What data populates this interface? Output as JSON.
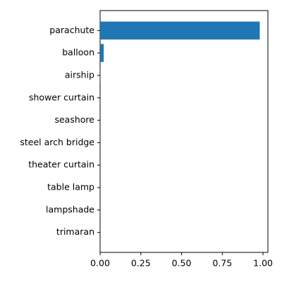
{
  "chart_data": {
    "type": "barh",
    "categories": [
      "parachute",
      "balloon",
      "airship",
      "shower curtain",
      "seashore",
      "steel arch bridge",
      "theater curtain",
      "table lamp",
      "lampshade",
      "trimaran"
    ],
    "values": [
      0.98,
      0.022,
      0.001,
      0.0005,
      0.0005,
      0.0004,
      0.0004,
      0.0003,
      0.0003,
      0.0003
    ],
    "color": "#1f77b4",
    "xlim": [
      0,
      1.03
    ],
    "xticks": [
      {
        "value": 0,
        "label": "0.00"
      },
      {
        "value": 0.25,
        "label": "0.25"
      },
      {
        "value": 0.5,
        "label": "0.50"
      },
      {
        "value": 0.75,
        "label": "0.75"
      },
      {
        "value": 1,
        "label": "1.00"
      }
    ]
  }
}
